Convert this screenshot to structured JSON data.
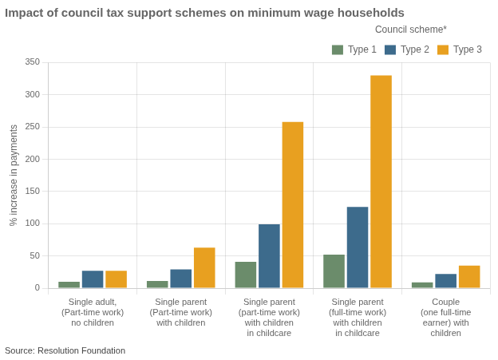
{
  "chart_data": {
    "type": "bar",
    "title": "Impact of council tax support schemes on minimum wage households",
    "ylabel": "% increase in payments",
    "source": "Source: Resolution Foundation",
    "legend_title": "Council scheme*",
    "legend": "upper right",
    "grid": true,
    "categories": [
      "Single adult,\n(Part-time work)\nno children",
      "Single parent\n(Part-time work)\nwith children",
      "Single parent\n(part-time work)\nwith children\nin childcare",
      "Single parent\n(full-time work)\nwith children\nin childcare",
      "Couple\n(one full-time\nearner) with\nchildren"
    ],
    "series": [
      {
        "name": "Type 1",
        "color": "#6b8c6b",
        "values": [
          10,
          11,
          41,
          52,
          9
        ]
      },
      {
        "name": "Type 2",
        "color": "#3d6b8c",
        "values": [
          27,
          29,
          99,
          126,
          22
        ]
      },
      {
        "name": "Type 3",
        "color": "#e8a020",
        "values": [
          27,
          63,
          258,
          330,
          35
        ]
      }
    ],
    "ylim": [
      0,
      350
    ],
    "yticks": [
      0,
      50,
      100,
      150,
      200,
      250,
      300,
      350
    ]
  }
}
